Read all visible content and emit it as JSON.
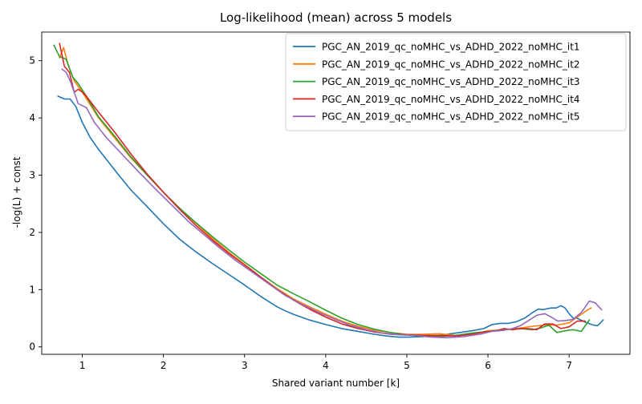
{
  "chart_data": {
    "type": "line",
    "title": "Log-likelihood (mean) across 5 models",
    "xlabel": "Shared variant number [k]",
    "ylabel": "-log(L) + const",
    "xlim": [
      0.5,
      7.75
    ],
    "ylim": [
      -0.13,
      5.5
    ],
    "xticks": [
      1,
      2,
      3,
      4,
      5,
      6,
      7
    ],
    "yticks": [
      0,
      1,
      2,
      3,
      4,
      5
    ],
    "grid": false,
    "legend_position": "top-right",
    "series": [
      {
        "name": "PGC_AN_2019_qc_noMHC_vs_ADHD_2022_noMHC_it1",
        "color": "#1f77b4",
        "x": [
          0.7,
          0.78,
          0.85,
          0.92,
          1.0,
          1.1,
          1.2,
          1.3,
          1.45,
          1.6,
          1.8,
          2.0,
          2.2,
          2.4,
          2.6,
          2.8,
          3.0,
          3.2,
          3.4,
          3.5,
          3.6,
          3.8,
          4.0,
          4.2,
          4.4,
          4.6,
          4.75,
          4.9,
          5.0,
          5.2,
          5.4,
          5.6,
          5.8,
          5.95,
          6.05,
          6.15,
          6.25,
          6.35,
          6.45,
          6.55,
          6.62,
          6.68,
          6.74,
          6.78,
          6.84,
          6.9,
          6.95,
          7.0,
          7.05,
          7.1,
          7.2,
          7.3,
          7.35,
          7.42
        ],
        "y": [
          4.38,
          4.33,
          4.33,
          4.2,
          3.92,
          3.65,
          3.45,
          3.27,
          3.0,
          2.74,
          2.45,
          2.15,
          1.88,
          1.66,
          1.46,
          1.27,
          1.08,
          0.88,
          0.7,
          0.63,
          0.57,
          0.47,
          0.39,
          0.32,
          0.27,
          0.22,
          0.19,
          0.17,
          0.17,
          0.18,
          0.2,
          0.24,
          0.28,
          0.32,
          0.39,
          0.41,
          0.41,
          0.44,
          0.5,
          0.6,
          0.66,
          0.65,
          0.67,
          0.68,
          0.68,
          0.72,
          0.68,
          0.58,
          0.5,
          0.5,
          0.43,
          0.38,
          0.37,
          0.47
        ]
      },
      {
        "name": "PGC_AN_2019_qc_noMHC_vs_ADHD_2022_noMHC_it2",
        "color": "#ff7f0e",
        "x": [
          0.72,
          0.77,
          0.82,
          0.9,
          1.0,
          1.2,
          1.4,
          1.6,
          1.8,
          2.0,
          2.2,
          2.4,
          2.6,
          2.8,
          3.0,
          3.2,
          3.4,
          3.6,
          3.8,
          4.0,
          4.2,
          4.4,
          4.6,
          4.8,
          5.0,
          5.2,
          5.4,
          5.6,
          5.8,
          6.0,
          6.2,
          6.4,
          6.55,
          6.7,
          6.85,
          7.0,
          7.1,
          7.2,
          7.27
        ],
        "y": [
          5.05,
          5.23,
          4.95,
          4.65,
          4.45,
          4.0,
          3.65,
          3.3,
          3.0,
          2.7,
          2.42,
          2.16,
          1.9,
          1.66,
          1.44,
          1.22,
          1.02,
          0.84,
          0.7,
          0.57,
          0.45,
          0.36,
          0.29,
          0.25,
          0.22,
          0.22,
          0.23,
          0.2,
          0.22,
          0.28,
          0.3,
          0.33,
          0.36,
          0.38,
          0.38,
          0.42,
          0.52,
          0.62,
          0.68
        ]
      },
      {
        "name": "PGC_AN_2019_qc_noMHC_vs_ADHD_2022_noMHC_it3",
        "color": "#2ca02c",
        "x": [
          0.65,
          0.72,
          0.8,
          0.88,
          0.95,
          1.05,
          1.2,
          1.4,
          1.6,
          1.8,
          2.0,
          2.2,
          2.4,
          2.6,
          2.8,
          3.0,
          3.2,
          3.4,
          3.6,
          3.8,
          4.0,
          4.2,
          4.4,
          4.6,
          4.8,
          5.0,
          5.2,
          5.4,
          5.6,
          5.8,
          6.0,
          6.2,
          6.4,
          6.55,
          6.65,
          6.75,
          6.85,
          6.95,
          7.05,
          7.15,
          7.25
        ],
        "y": [
          5.27,
          5.07,
          5.03,
          4.72,
          4.6,
          4.38,
          4.02,
          3.68,
          3.32,
          3.0,
          2.7,
          2.42,
          2.17,
          1.93,
          1.7,
          1.48,
          1.28,
          1.08,
          0.93,
          0.79,
          0.64,
          0.5,
          0.39,
          0.31,
          0.25,
          0.21,
          0.19,
          0.18,
          0.2,
          0.24,
          0.27,
          0.3,
          0.32,
          0.3,
          0.33,
          0.38,
          0.25,
          0.28,
          0.3,
          0.27,
          0.47
        ]
      },
      {
        "name": "PGC_AN_2019_qc_noMHC_vs_ADHD_2022_noMHC_it4",
        "color": "#d62728",
        "x": [
          0.72,
          0.78,
          0.84,
          0.9,
          0.95,
          1.0,
          1.05,
          1.2,
          1.4,
          1.6,
          1.8,
          2.0,
          2.2,
          2.4,
          2.6,
          2.8,
          3.0,
          3.2,
          3.4,
          3.6,
          3.8,
          4.0,
          4.2,
          4.4,
          4.6,
          4.8,
          5.0,
          5.2,
          5.4,
          5.6,
          5.8,
          6.0,
          6.1,
          6.2,
          6.3,
          6.4,
          6.5,
          6.6,
          6.7,
          6.8,
          6.9,
          7.0,
          7.1,
          7.2
        ],
        "y": [
          5.3,
          4.9,
          4.8,
          4.45,
          4.5,
          4.45,
          4.38,
          4.1,
          3.75,
          3.37,
          3.02,
          2.7,
          2.4,
          2.12,
          1.87,
          1.64,
          1.43,
          1.22,
          1.0,
          0.82,
          0.66,
          0.52,
          0.4,
          0.32,
          0.26,
          0.22,
          0.21,
          0.2,
          0.2,
          0.19,
          0.22,
          0.27,
          0.28,
          0.32,
          0.3,
          0.32,
          0.32,
          0.3,
          0.4,
          0.4,
          0.32,
          0.35,
          0.45,
          0.45
        ]
      },
      {
        "name": "PGC_AN_2019_qc_noMHC_vs_ADHD_2022_noMHC_it5",
        "color": "#9467bd",
        "x": [
          0.75,
          0.8,
          0.85,
          0.9,
          0.95,
          1.05,
          1.15,
          1.3,
          1.5,
          1.7,
          1.9,
          2.1,
          2.3,
          2.5,
          2.7,
          2.9,
          3.1,
          3.3,
          3.5,
          3.7,
          3.9,
          4.1,
          4.3,
          4.5,
          4.7,
          4.9,
          5.1,
          5.3,
          5.5,
          5.7,
          5.9,
          6.05,
          6.2,
          6.3,
          6.4,
          6.5,
          6.6,
          6.7,
          6.78,
          6.86,
          6.95,
          7.05,
          7.15,
          7.25,
          7.32,
          7.4
        ],
        "y": [
          4.85,
          4.8,
          4.65,
          4.45,
          4.25,
          4.18,
          3.92,
          3.65,
          3.35,
          3.05,
          2.76,
          2.48,
          2.2,
          1.96,
          1.72,
          1.5,
          1.3,
          1.1,
          0.9,
          0.75,
          0.61,
          0.49,
          0.38,
          0.3,
          0.24,
          0.21,
          0.2,
          0.17,
          0.16,
          0.18,
          0.22,
          0.27,
          0.29,
          0.32,
          0.37,
          0.46,
          0.55,
          0.58,
          0.52,
          0.45,
          0.46,
          0.48,
          0.6,
          0.8,
          0.77,
          0.65
        ]
      }
    ]
  }
}
